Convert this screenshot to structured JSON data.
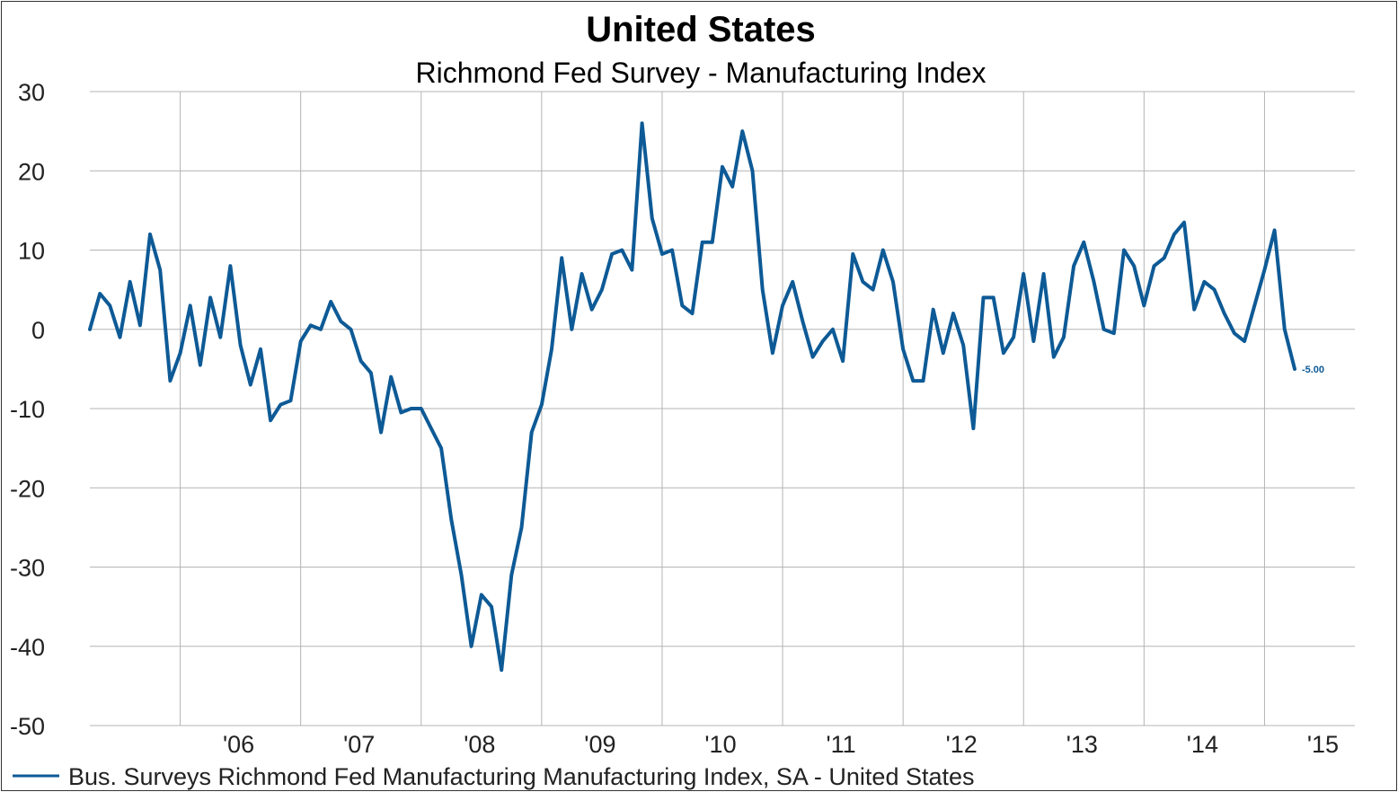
{
  "chart_data": {
    "type": "line",
    "title": "United States",
    "subtitle": "Richmond Fed Survey - Manufacturing Index",
    "ylim": [
      -50,
      30
    ],
    "yticks": [
      30,
      20,
      10,
      0,
      -10,
      -20,
      -30,
      -40,
      -50
    ],
    "xlim": [
      2005.25,
      2015.75
    ],
    "x_tick_labels": [
      "'06",
      "'07",
      "'08",
      "'09",
      "'10",
      "'11",
      "'12",
      "'13",
      "'14",
      "'15"
    ],
    "grid": true,
    "legend_position": "bottom-left",
    "last_value_label": "-5.00",
    "series": [
      {
        "name": "Bus. Surveys Richmond Fed Manufacturing Manufacturing Index, SA - United States",
        "color": "#0d5a96",
        "start": [
          2005,
          4
        ],
        "frequency": "monthly",
        "values": [
          0,
          4.5,
          3,
          -1,
          6,
          0.5,
          12,
          7.5,
          -6.5,
          -3,
          3,
          -4.5,
          4,
          -1,
          8,
          -2,
          -7,
          -2.5,
          -11.5,
          -9.5,
          -9,
          -1.5,
          0.5,
          0,
          3.5,
          1,
          0,
          -4,
          -5.5,
          -13,
          -6,
          -10.5,
          -10,
          -10,
          -12.5,
          -15,
          -24,
          -31,
          -40,
          -33.5,
          -35,
          -43,
          -31,
          -25,
          -13,
          -9.5,
          -2.5,
          9,
          0,
          7,
          2.5,
          5,
          9.5,
          10,
          7.5,
          26,
          14,
          9.5,
          10,
          3,
          2,
          11,
          11,
          20.5,
          18,
          25,
          20,
          5,
          -3,
          3,
          6,
          1,
          -3.5,
          -1.5,
          0,
          -4,
          9.5,
          6,
          5,
          10,
          6,
          -2.5,
          -6.5,
          -6.5,
          2.5,
          -3,
          2,
          -2,
          -12.5,
          4,
          4,
          -3,
          -1,
          7,
          -1.5,
          7,
          -3.5,
          -1,
          8,
          11,
          6,
          0,
          -0.5,
          10,
          8,
          3,
          8,
          9,
          12,
          13.5,
          2.5,
          6,
          5,
          2,
          -0.5,
          -1.5,
          3,
          7.5,
          12.5,
          0,
          -5
        ]
      }
    ]
  }
}
